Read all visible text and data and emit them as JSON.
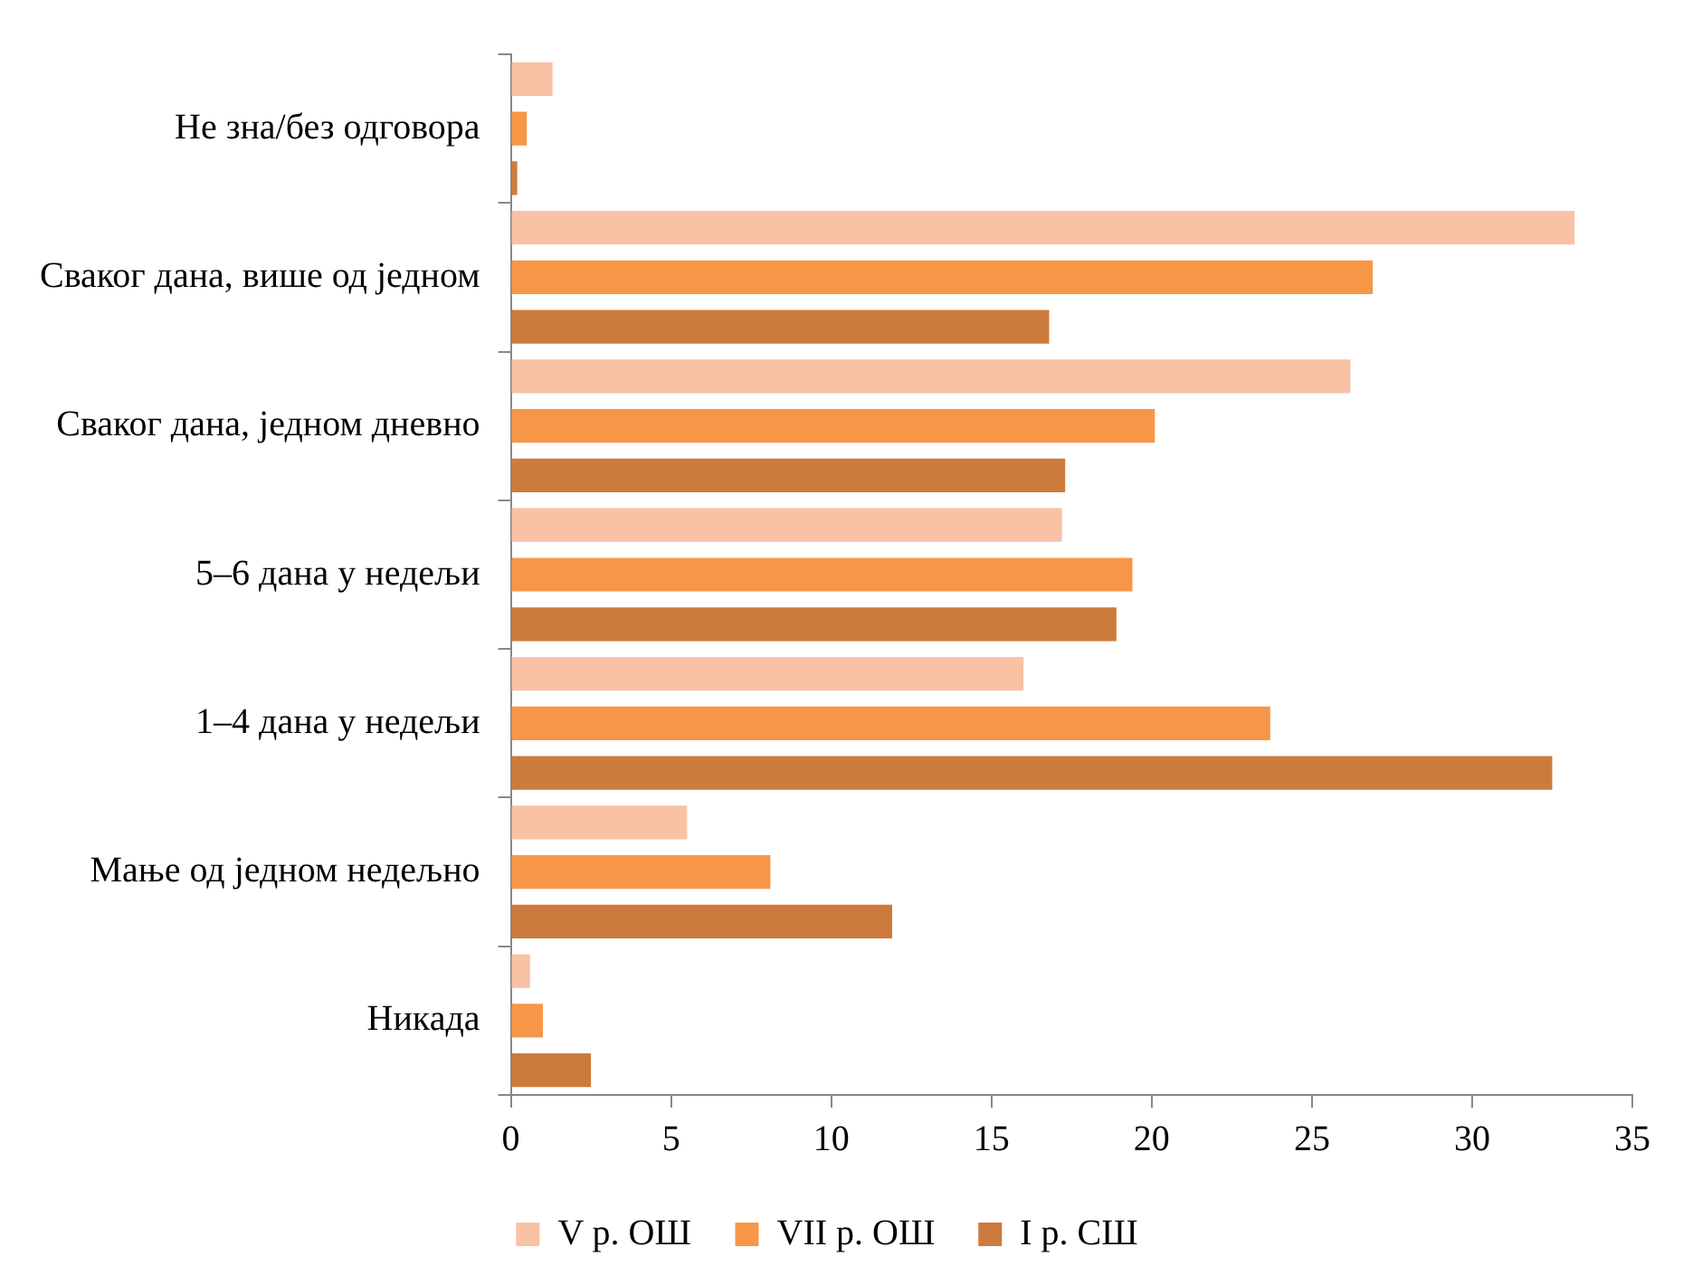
{
  "chart_data": {
    "type": "bar",
    "orientation": "horizontal",
    "categories": [
      "Не зна/без одговора",
      "Сваког дана, више од једном",
      "Сваког дана, једном дневно",
      "5–6 дана у недељи",
      "1–4 дана у недељи",
      "Мање од једном недељно",
      "Никада"
    ],
    "series": [
      {
        "name": "V р. ОШ",
        "color": "#f9c2a4",
        "values": [
          1.3,
          33.2,
          26.2,
          17.2,
          16.0,
          5.5,
          0.6
        ]
      },
      {
        "name": "VII р. ОШ",
        "color": "#f79646",
        "values": [
          0.5,
          26.9,
          20.1,
          19.4,
          23.7,
          8.1,
          1.0
        ]
      },
      {
        "name": "I р. СШ",
        "color": "#cd7b3c",
        "values": [
          0.2,
          16.8,
          17.3,
          18.9,
          32.5,
          11.9,
          2.5
        ]
      }
    ],
    "xlim": [
      0,
      35
    ],
    "xticks": [
      0,
      5,
      10,
      15,
      20,
      25,
      30,
      35
    ],
    "grid": false,
    "legend": "bottom"
  }
}
